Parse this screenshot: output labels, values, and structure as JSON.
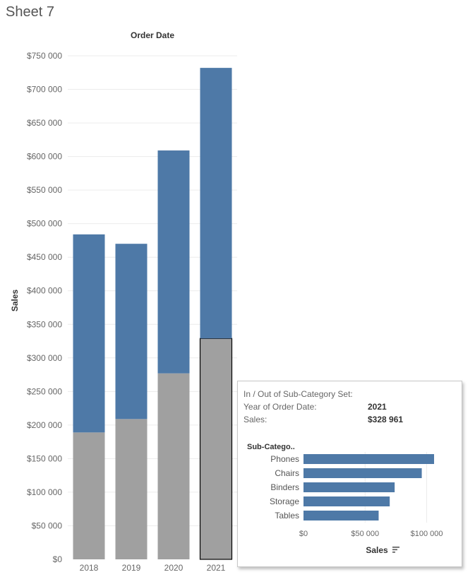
{
  "sheet": {
    "title": "Sheet 7"
  },
  "chart_data": [
    {
      "type": "bar",
      "stacked": true,
      "title": "",
      "xlabel": "Order Date",
      "ylabel": "Sales",
      "categories": [
        "2018",
        "2019",
        "2020",
        "2021"
      ],
      "series": [
        {
          "values": [
            189000,
            209000,
            277000,
            329000
          ],
          "color": "#a0a0a0"
        },
        {
          "values": [
            295000,
            261000,
            332000,
            403000
          ],
          "color": "#4e79a7"
        }
      ],
      "ylim": [
        0,
        750000
      ],
      "yticks": [
        0,
        50000,
        100000,
        150000,
        200000,
        250000,
        300000,
        350000,
        400000,
        450000,
        500000,
        550000,
        600000,
        650000,
        700000,
        750000
      ],
      "ytick_labels": [
        "$0",
        "$50 000",
        "$100 000",
        "$150 000",
        "$200 000",
        "$250 000",
        "$300 000",
        "$350 000",
        "$400 000",
        "$450 000",
        "$500 000",
        "$550 000",
        "$600 000",
        "$650 000",
        "$700 000",
        "$750 000"
      ],
      "grid": true,
      "selected": {
        "category": "2021",
        "series_index": 0
      }
    },
    {
      "type": "bar",
      "orientation": "horizontal",
      "title": "",
      "ylabel": "Sub-Catego..",
      "xlabel": "Sales",
      "categories": [
        "Phones",
        "Chairs",
        "Binders",
        "Storage",
        "Tables"
      ],
      "values": [
        106000,
        96000,
        74000,
        70000,
        61000
      ],
      "color": "#4e79a7",
      "xlim": [
        0,
        110000
      ],
      "xticks": [
        0,
        50000,
        100000
      ],
      "xtick_labels": [
        "$0",
        "$50 000",
        "$100 000"
      ],
      "sort_icon": "sort-descending-icon"
    }
  ],
  "tooltip": {
    "heading": "In / Out of Sub-Category Set:",
    "rows": [
      {
        "label": "Year of Order Date:",
        "value": "2021"
      },
      {
        "label": "Sales:",
        "value": "$328 961"
      }
    ]
  }
}
